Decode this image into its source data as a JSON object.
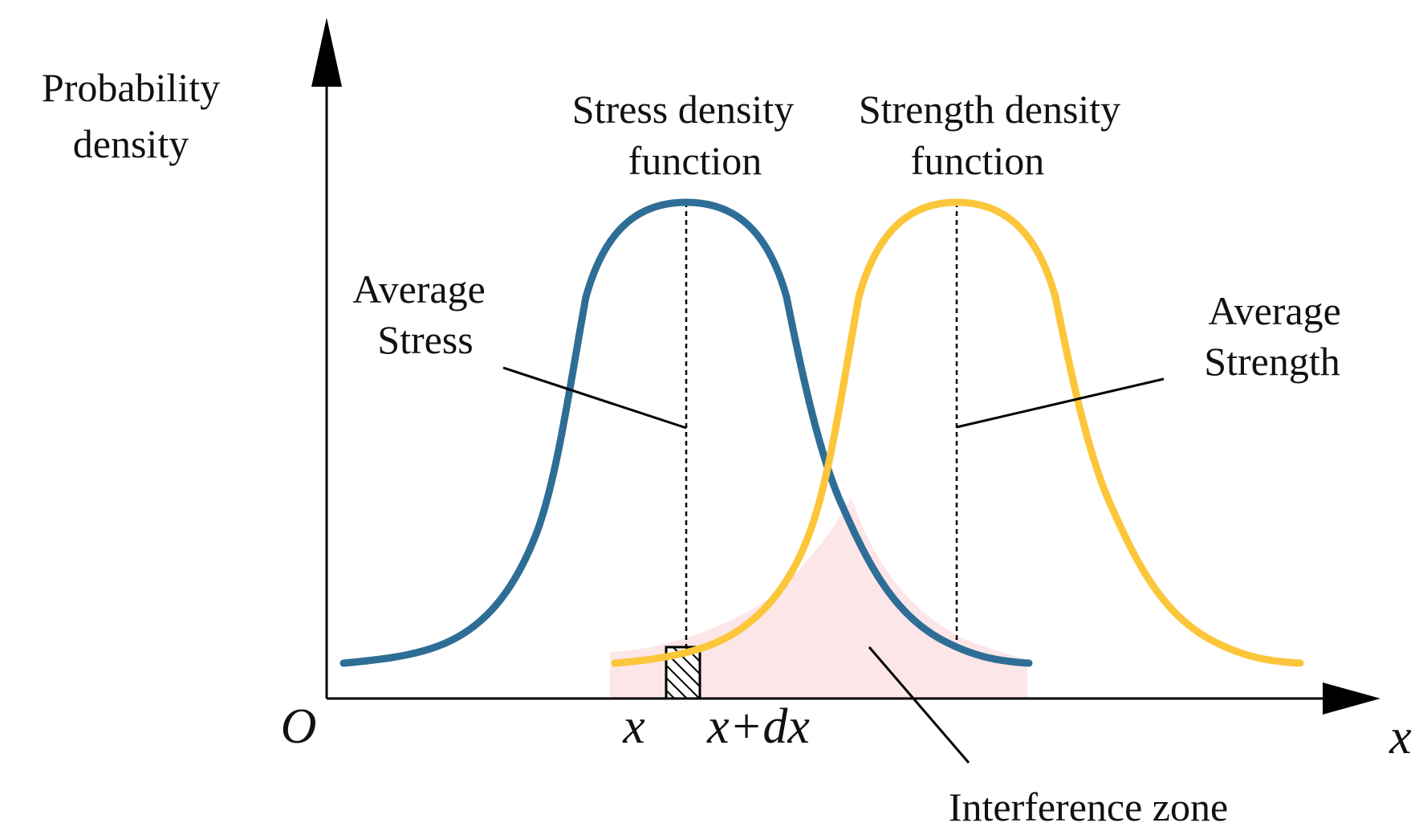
{
  "diagram": {
    "y_axis_label": [
      "Probability",
      "density"
    ],
    "origin_label": "O",
    "x_axis_label": "x",
    "stress_label": [
      "Stress density",
      "function"
    ],
    "strength_label": [
      "Strength density",
      "function"
    ],
    "average_stress_label": [
      "Average",
      "Stress"
    ],
    "average_strength_label": [
      "Average",
      "Strength"
    ],
    "interference_label": "Interference zone",
    "tick_x": "x",
    "tick_x_dx": "x+dx"
  },
  "colors": {
    "stress_curve": "#2e6e96",
    "strength_curve": "#fcc63a",
    "interference_fill": "#fde6e8",
    "axis": "#000000"
  }
}
